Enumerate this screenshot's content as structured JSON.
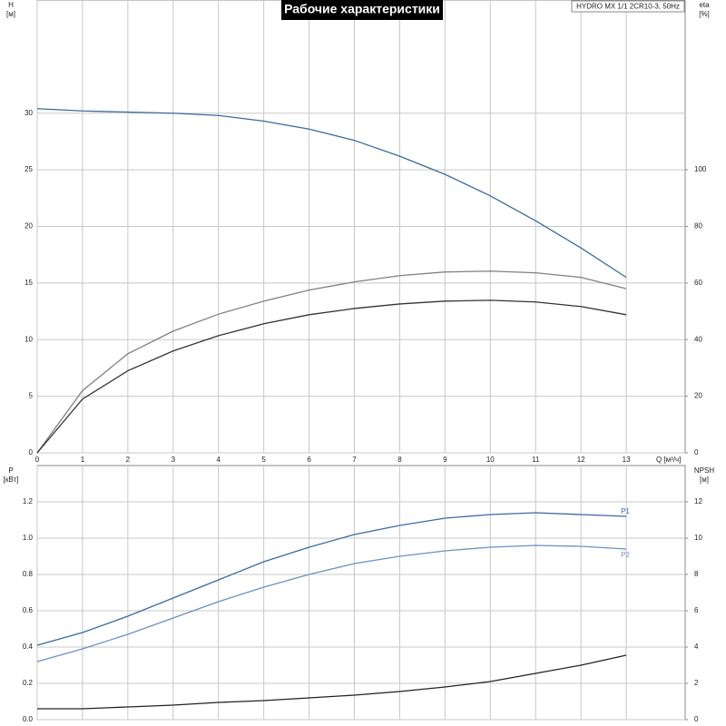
{
  "chart_data": [
    {
      "type": "line",
      "title": "Рабочие характеристики",
      "subtitle": "HYDRO MX 1/1 2CR10-3, 50Hz",
      "y_label": "H",
      "y_unit": "[м]",
      "y2_label": "eta",
      "y2_unit": "[%]",
      "x_label": "Q [м³/ч]",
      "x": [
        0,
        1,
        2,
        3,
        4,
        5,
        6,
        7,
        8,
        9,
        10,
        11,
        12,
        13
      ],
      "xlim": [
        0,
        14.3
      ],
      "xticks": [
        0,
        1,
        2,
        3,
        4,
        5,
        6,
        7,
        8,
        9,
        10,
        11,
        12,
        13
      ],
      "ylim": [
        0,
        40
      ],
      "yticks": [
        0,
        5,
        10,
        15,
        20,
        25,
        30
      ],
      "y2lim": [
        0,
        160
      ],
      "y2ticks": [
        0,
        20,
        40,
        60,
        80,
        100
      ],
      "grid": true,
      "series": [
        {
          "color": "#3a6aa0",
          "values": [
            30.4,
            30.2,
            30.1,
            30.0,
            29.8,
            29.3,
            28.6,
            27.6,
            26.2,
            24.6,
            22.7,
            20.5,
            18.1,
            15.5
          ]
        },
        {
          "color": "#808080",
          "axis": "y2",
          "values": [
            0,
            22,
            35,
            43,
            49,
            53.6,
            57.5,
            60.4,
            62.6,
            63.9,
            64.2,
            63.6,
            62,
            58
          ]
        },
        {
          "color": "#333333",
          "axis": "y2",
          "values": [
            0,
            19,
            29,
            36,
            41.4,
            45.6,
            48.8,
            51,
            52.6,
            53.6,
            53.9,
            53.3,
            51.7,
            48.8
          ]
        }
      ]
    },
    {
      "type": "line",
      "y_label": "P",
      "y_unit": "[кВт]",
      "y2_label": "NPSH",
      "y2_unit": "[м]",
      "x": [
        0,
        1,
        2,
        3,
        4,
        5,
        6,
        7,
        8,
        9,
        10,
        11,
        12,
        13
      ],
      "xlim": [
        0,
        14.3
      ],
      "ylim": [
        0,
        1.4
      ],
      "yticks": [
        {
          "value": 0,
          "label": "0.0"
        },
        0.2,
        0.4,
        0.6,
        0.8,
        {
          "value": 1,
          "label": "1.0"
        },
        1.2
      ],
      "y2lim": [
        0,
        14
      ],
      "y2ticks": [
        0,
        2,
        4,
        6,
        8,
        10,
        12
      ],
      "grid": true,
      "series": [
        {
          "name": "P1",
          "color": "#3a6aa0",
          "values": [
            0.41,
            0.48,
            0.57,
            0.67,
            0.77,
            0.87,
            0.95,
            1.02,
            1.07,
            1.11,
            1.13,
            1.14,
            1.13,
            1.12
          ]
        },
        {
          "name": "P2",
          "color": "#6f8fc2",
          "values": [
            0.32,
            0.39,
            0.47,
            0.56,
            0.65,
            0.73,
            0.8,
            0.86,
            0.9,
            0.93,
            0.95,
            0.96,
            0.955,
            0.94
          ]
        },
        {
          "color": "#222222",
          "axis": "y2",
          "values": [
            0.6,
            0.6,
            0.7,
            0.8,
            0.95,
            1.05,
            1.2,
            1.35,
            1.55,
            1.8,
            2.1,
            2.55,
            3.0,
            3.55
          ]
        }
      ]
    }
  ]
}
